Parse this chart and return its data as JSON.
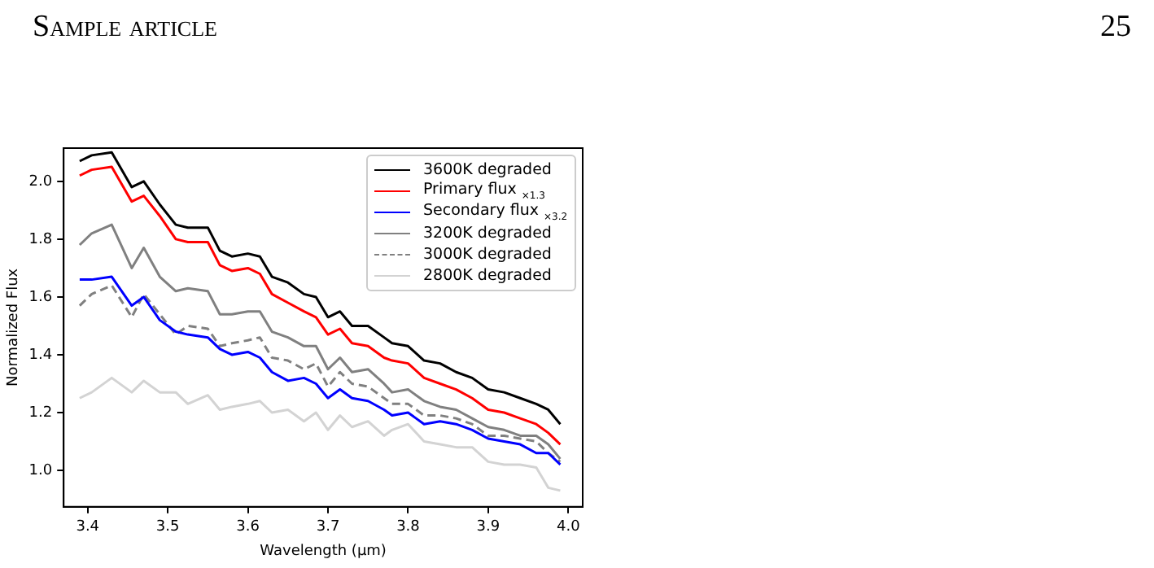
{
  "chart_data": {
    "type": "line",
    "xlabel": "Wavelength (μm)",
    "ylabel": "Normalized Flux",
    "annotations": [
      "Sample article",
      "25"
    ],
    "x": [
      3.39,
      3.405,
      3.43,
      3.455,
      3.47,
      3.49,
      3.51,
      3.525,
      3.55,
      3.565,
      3.58,
      3.6,
      3.615,
      3.63,
      3.65,
      3.67,
      3.685,
      3.7,
      3.715,
      3.73,
      3.75,
      3.77,
      3.78,
      3.8,
      3.82,
      3.84,
      3.86,
      3.88,
      3.9,
      3.92,
      3.94,
      3.96,
      3.975,
      3.99
    ],
    "series": [
      {
        "name": "3600K degraded",
        "color": "#000000",
        "values": [
          2.07,
          2.09,
          2.1,
          1.98,
          2.0,
          1.92,
          1.85,
          1.84,
          1.84,
          1.76,
          1.74,
          1.75,
          1.74,
          1.67,
          1.65,
          1.61,
          1.6,
          1.53,
          1.55,
          1.5,
          1.5,
          1.46,
          1.44,
          1.43,
          1.38,
          1.37,
          1.34,
          1.32,
          1.28,
          1.27,
          1.25,
          1.23,
          1.21,
          1.16
        ]
      },
      {
        "name": "Primary flux $_{×1.3}$",
        "color": "#ff0000",
        "values": [
          2.02,
          2.04,
          2.05,
          1.93,
          1.95,
          1.88,
          1.8,
          1.79,
          1.79,
          1.71,
          1.69,
          1.7,
          1.68,
          1.61,
          1.58,
          1.55,
          1.53,
          1.47,
          1.49,
          1.44,
          1.43,
          1.39,
          1.38,
          1.37,
          1.32,
          1.3,
          1.28,
          1.25,
          1.21,
          1.2,
          1.18,
          1.16,
          1.13,
          1.09
        ]
      },
      {
        "name": "Secondary flux $_{×3.2}$",
        "color": "#0000ff",
        "values": [
          1.66,
          1.66,
          1.67,
          1.57,
          1.6,
          1.52,
          1.48,
          1.47,
          1.46,
          1.42,
          1.4,
          1.41,
          1.39,
          1.34,
          1.31,
          1.32,
          1.3,
          1.25,
          1.28,
          1.25,
          1.24,
          1.21,
          1.19,
          1.2,
          1.16,
          1.17,
          1.16,
          1.14,
          1.11,
          1.1,
          1.09,
          1.06,
          1.06,
          1.02
        ]
      },
      {
        "name": "3200K degraded",
        "color": "#808080",
        "values": [
          1.78,
          1.82,
          1.85,
          1.7,
          1.77,
          1.67,
          1.62,
          1.63,
          1.62,
          1.54,
          1.54,
          1.55,
          1.55,
          1.48,
          1.46,
          1.43,
          1.43,
          1.35,
          1.39,
          1.34,
          1.35,
          1.3,
          1.27,
          1.28,
          1.24,
          1.22,
          1.21,
          1.18,
          1.15,
          1.14,
          1.12,
          1.12,
          1.09,
          1.04
        ]
      },
      {
        "name": "3000K degraded",
        "color": "#808080",
        "line_style": "dashed",
        "values": [
          1.57,
          1.61,
          1.64,
          1.53,
          1.61,
          1.54,
          1.47,
          1.5,
          1.49,
          1.43,
          1.44,
          1.45,
          1.46,
          1.39,
          1.38,
          1.35,
          1.37,
          1.29,
          1.34,
          1.3,
          1.29,
          1.25,
          1.23,
          1.23,
          1.19,
          1.19,
          1.18,
          1.16,
          1.12,
          1.12,
          1.11,
          1.1,
          1.06,
          1.03
        ]
      },
      {
        "name": "2800K degraded",
        "color": "#d3d3d3",
        "values": [
          1.25,
          1.27,
          1.32,
          1.27,
          1.31,
          1.27,
          1.27,
          1.23,
          1.26,
          1.21,
          1.22,
          1.23,
          1.24,
          1.2,
          1.21,
          1.17,
          1.2,
          1.14,
          1.19,
          1.15,
          1.17,
          1.12,
          1.14,
          1.16,
          1.1,
          1.09,
          1.08,
          1.08,
          1.03,
          1.02,
          1.02,
          1.01,
          0.94,
          0.93
        ]
      }
    ],
    "xlim": [
      3.37,
      4.018
    ],
    "xticks": [
      3.4,
      3.5,
      3.6,
      3.7,
      3.8,
      3.9,
      {
        "value": 4.0,
        "label": "4.0"
      }
    ],
    "ylim": [
      0.874,
      2.115
    ],
    "yticks": [
      {
        "value": 1.0,
        "label": "1.0"
      },
      1.2,
      1.4,
      1.6,
      1.8,
      {
        "value": 2.0,
        "label": "2.0"
      }
    ],
    "grid": false,
    "legend": "top right",
    "marker": "none",
    "line_style": "solid"
  }
}
